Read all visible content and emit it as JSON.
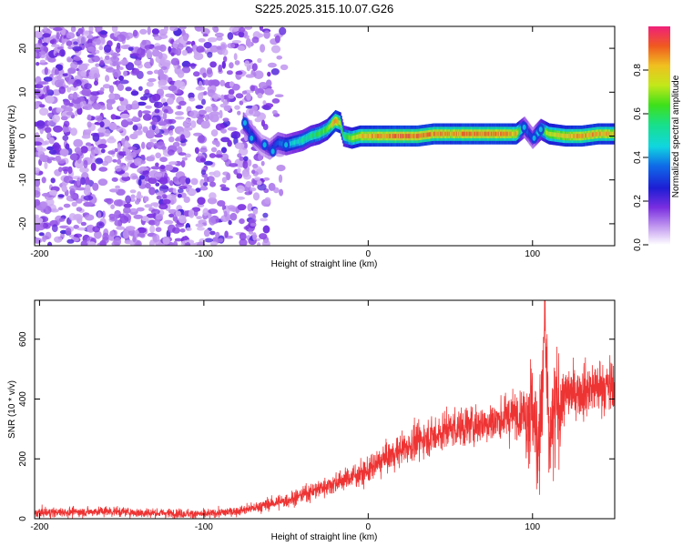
{
  "chart_data": [
    {
      "type": "heatmap",
      "title": "S225.2025.315.10.07.G26",
      "xlabel": "Height of straight line (km)",
      "ylabel": "Frequency (Hz)",
      "xlim": [
        -203,
        150
      ],
      "ylim": [
        -25,
        25
      ],
      "x_ticks": [
        -200,
        -100,
        0,
        100
      ],
      "y_ticks": [
        -20,
        -10,
        0,
        10,
        20
      ],
      "colorbar": {
        "label": "Normalized spectral amplitude",
        "range": [
          0,
          1
        ],
        "ticks": [
          0.0,
          0.2,
          0.4,
          0.6,
          0.8
        ]
      },
      "ridge": {
        "x": [
          -76,
          -70,
          -65,
          -60,
          -55,
          -50,
          -45,
          -40,
          -35,
          -30,
          -25,
          -20,
          -17,
          -15,
          -10,
          -5,
          0,
          10,
          20,
          30,
          40,
          50,
          60,
          70,
          80,
          90,
          95,
          100,
          105,
          110,
          120,
          130,
          140,
          150
        ],
        "y": [
          3,
          0,
          -2,
          -3,
          -1.5,
          -2,
          -1.5,
          -1,
          0,
          0.5,
          1.5,
          3.5,
          3,
          0,
          -0.5,
          0,
          0,
          0,
          0,
          0,
          0.5,
          0.5,
          0.5,
          0.5,
          0.5,
          0.5,
          2,
          -0.5,
          1.5,
          0.5,
          0,
          0,
          0.5,
          0.5
        ],
        "amplitude": [
          0.35,
          0.3,
          0.2,
          0.25,
          0.35,
          0.45,
          0.5,
          0.55,
          0.6,
          0.65,
          0.7,
          0.9,
          0.8,
          0.6,
          0.75,
          0.85,
          0.9,
          0.92,
          0.95,
          0.95,
          0.92,
          0.9,
          0.93,
          0.95,
          0.92,
          0.9,
          0.4,
          0.3,
          0.6,
          0.8,
          0.85,
          0.9,
          0.9,
          0.85
        ]
      },
      "noise_region": {
        "x_range": [
          -203,
          -50
        ],
        "density_drop_at": -75
      }
    },
    {
      "type": "line",
      "xlabel": "Height of straight line (km)",
      "ylabel": "SNR (10 * v/v)",
      "xlim": [
        -203,
        150
      ],
      "ylim": [
        0,
        730
      ],
      "x_ticks": [
        -200,
        -100,
        0,
        100
      ],
      "y_ticks": [
        0,
        200,
        400,
        600
      ],
      "color": "#ee3333",
      "series": [
        {
          "name": "SNR",
          "x": [
            -203,
            -180,
            -160,
            -140,
            -120,
            -100,
            -80,
            -70,
            -60,
            -50,
            -40,
            -30,
            -20,
            -10,
            0,
            10,
            20,
            30,
            40,
            50,
            60,
            70,
            80,
            90,
            95,
            100,
            103,
            106,
            108,
            110,
            115,
            120,
            130,
            140,
            150
          ],
          "y": [
            20,
            22,
            25,
            20,
            18,
            15,
            25,
            35,
            50,
            60,
            80,
            100,
            120,
            140,
            160,
            200,
            230,
            260,
            280,
            300,
            310,
            320,
            330,
            350,
            360,
            370,
            250,
            400,
            550,
            250,
            380,
            410,
            430,
            440,
            440
          ]
        }
      ]
    }
  ]
}
